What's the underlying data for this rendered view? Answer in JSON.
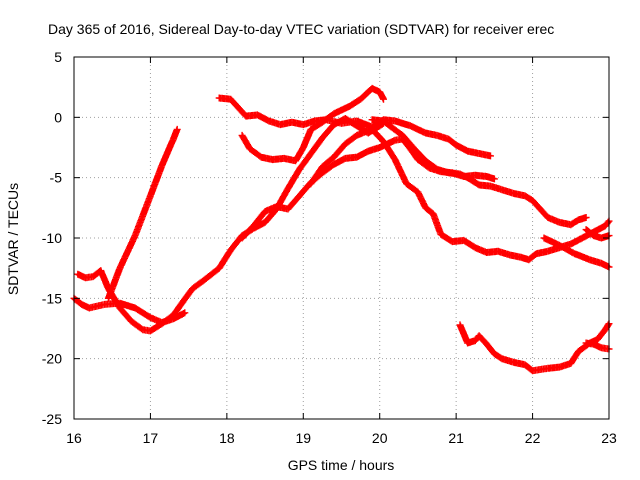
{
  "chart_data": {
    "type": "scatter",
    "title": "Day 365 of 2016, Sidereal Day-to-day VTEC variation (SDTVAR) for receiver erec",
    "xlabel": "GPS time / hours",
    "ylabel": "SDTVAR / TECUs",
    "xlim": [
      16,
      23
    ],
    "ylim": [
      -25,
      5
    ],
    "xticks": [
      "16",
      "17",
      "18",
      "19",
      "20",
      "21",
      "22",
      "23"
    ],
    "yticks": [
      "-25",
      "-20",
      "-15",
      "-10",
      "-5",
      "0",
      "5"
    ],
    "grid": true,
    "marker": "plus",
    "color": "#ff0000",
    "series": [
      {
        "name": "s1",
        "points": [
          [
            16.0,
            -15.0
          ],
          [
            16.1,
            -15.5
          ],
          [
            16.2,
            -15.8
          ],
          [
            16.4,
            -15.5
          ],
          [
            16.6,
            -15.4
          ],
          [
            16.8,
            -15.8
          ],
          [
            17.0,
            -16.6
          ],
          [
            17.15,
            -17.0
          ],
          [
            17.3,
            -16.7
          ],
          [
            17.45,
            -16.2
          ]
        ]
      },
      {
        "name": "s2",
        "points": [
          [
            16.05,
            -13.0
          ],
          [
            16.15,
            -13.3
          ],
          [
            16.25,
            -13.2
          ],
          [
            16.35,
            -12.7
          ],
          [
            16.45,
            -14.2
          ],
          [
            16.6,
            -15.8
          ],
          [
            16.75,
            -16.9
          ],
          [
            16.9,
            -17.6
          ],
          [
            17.0,
            -17.7
          ],
          [
            17.15,
            -17.1
          ],
          [
            17.3,
            -16.4
          ],
          [
            17.4,
            -15.5
          ],
          [
            17.55,
            -14.2
          ],
          [
            17.7,
            -13.5
          ],
          [
            17.9,
            -12.5
          ],
          [
            18.05,
            -11.0
          ],
          [
            18.2,
            -9.8
          ],
          [
            18.35,
            -9.2
          ],
          [
            18.5,
            -8.7
          ],
          [
            18.65,
            -7.6
          ],
          [
            18.8,
            -5.9
          ],
          [
            18.95,
            -4.3
          ],
          [
            19.1,
            -3.0
          ],
          [
            19.25,
            -1.7
          ],
          [
            19.4,
            -0.6
          ],
          [
            19.55,
            -0.1
          ],
          [
            19.7,
            -0.7
          ],
          [
            19.85,
            -1.3
          ],
          [
            19.95,
            -0.9
          ],
          [
            20.05,
            -0.5
          ]
        ]
      },
      {
        "name": "s3",
        "points": [
          [
            16.45,
            -15.0
          ],
          [
            16.6,
            -12.5
          ],
          [
            16.8,
            -9.8
          ],
          [
            17.0,
            -6.5
          ],
          [
            17.15,
            -4.0
          ],
          [
            17.3,
            -1.8
          ],
          [
            17.35,
            -1.0
          ]
        ]
      },
      {
        "name": "s4",
        "points": [
          [
            17.9,
            1.6
          ],
          [
            18.05,
            1.5
          ],
          [
            18.15,
            0.8
          ],
          [
            18.25,
            0.1
          ],
          [
            18.4,
            0.2
          ],
          [
            18.55,
            -0.3
          ],
          [
            18.7,
            -0.6
          ],
          [
            18.85,
            -0.4
          ],
          [
            19.0,
            -0.6
          ],
          [
            19.15,
            -0.3
          ],
          [
            19.3,
            -0.2
          ],
          [
            19.5,
            -0.5
          ],
          [
            19.7,
            -0.3
          ],
          [
            19.9,
            -0.8
          ],
          [
            20.05,
            -0.2
          ],
          [
            20.2,
            -0.3
          ],
          [
            20.4,
            -0.7
          ],
          [
            20.6,
            -1.3
          ],
          [
            20.75,
            -1.5
          ],
          [
            20.9,
            -1.8
          ],
          [
            21.0,
            -2.3
          ],
          [
            21.15,
            -2.8
          ],
          [
            21.3,
            -3.0
          ],
          [
            21.45,
            -3.2
          ]
        ]
      },
      {
        "name": "s5",
        "points": [
          [
            18.2,
            -10.0
          ],
          [
            18.35,
            -9.0
          ],
          [
            18.5,
            -7.8
          ],
          [
            18.65,
            -7.4
          ],
          [
            18.8,
            -7.6
          ],
          [
            18.95,
            -6.5
          ],
          [
            19.1,
            -5.4
          ],
          [
            19.25,
            -4.6
          ],
          [
            19.4,
            -3.9
          ],
          [
            19.55,
            -3.4
          ],
          [
            19.7,
            -3.3
          ],
          [
            19.85,
            -2.8
          ],
          [
            20.0,
            -2.5
          ],
          [
            20.1,
            -2.2
          ],
          [
            20.2,
            -1.9
          ],
          [
            20.3,
            -1.8
          ],
          [
            20.4,
            -2.6
          ],
          [
            20.5,
            -3.5
          ],
          [
            20.65,
            -4.2
          ],
          [
            20.8,
            -4.5
          ],
          [
            20.95,
            -4.6
          ],
          [
            21.1,
            -4.9
          ],
          [
            21.25,
            -4.8
          ],
          [
            21.4,
            -4.9
          ],
          [
            21.5,
            -5.1
          ]
        ]
      },
      {
        "name": "s6",
        "points": [
          [
            18.2,
            -1.5
          ],
          [
            18.3,
            -2.6
          ],
          [
            18.45,
            -3.3
          ],
          [
            18.6,
            -3.5
          ],
          [
            18.75,
            -3.4
          ],
          [
            18.9,
            -3.6
          ],
          [
            19.0,
            -2.5
          ],
          [
            19.1,
            -1.0
          ],
          [
            19.25,
            -0.4
          ],
          [
            19.4,
            0.3
          ],
          [
            19.6,
            0.9
          ],
          [
            19.75,
            1.5
          ],
          [
            19.9,
            2.4
          ],
          [
            20.0,
            2.1
          ],
          [
            20.05,
            1.5
          ]
        ]
      },
      {
        "name": "s7",
        "points": [
          [
            19.1,
            -5.5
          ],
          [
            19.25,
            -4.1
          ],
          [
            19.4,
            -3.3
          ],
          [
            19.55,
            -2.2
          ],
          [
            19.7,
            -1.5
          ],
          [
            19.85,
            -1.1
          ],
          [
            19.9,
            -1.0
          ],
          [
            20.05,
            -2.0
          ],
          [
            20.2,
            -3.5
          ],
          [
            20.35,
            -5.5
          ],
          [
            20.5,
            -6.2
          ],
          [
            20.6,
            -7.5
          ],
          [
            20.7,
            -8.0
          ],
          [
            20.8,
            -9.7
          ],
          [
            20.95,
            -10.3
          ],
          [
            21.1,
            -10.2
          ],
          [
            21.25,
            -10.8
          ],
          [
            21.4,
            -11.2
          ],
          [
            21.55,
            -11.1
          ],
          [
            21.7,
            -11.4
          ],
          [
            21.85,
            -11.6
          ],
          [
            21.95,
            -11.8
          ],
          [
            22.05,
            -11.3
          ],
          [
            22.2,
            -11.1
          ],
          [
            22.35,
            -10.8
          ],
          [
            22.5,
            -10.5
          ],
          [
            22.65,
            -10.0
          ],
          [
            22.8,
            -9.5
          ],
          [
            22.95,
            -9.0
          ],
          [
            23.0,
            -8.6
          ]
        ]
      },
      {
        "name": "s8",
        "points": [
          [
            19.9,
            -0.2
          ],
          [
            20.05,
            -0.3
          ],
          [
            20.15,
            -0.8
          ],
          [
            20.3,
            -1.5
          ],
          [
            20.45,
            -2.6
          ],
          [
            20.6,
            -3.6
          ],
          [
            20.75,
            -4.3
          ],
          [
            20.9,
            -4.6
          ],
          [
            21.05,
            -4.7
          ],
          [
            21.15,
            -5.0
          ],
          [
            21.3,
            -5.6
          ],
          [
            21.45,
            -5.7
          ],
          [
            21.6,
            -6.0
          ],
          [
            21.75,
            -6.3
          ],
          [
            21.9,
            -6.5
          ],
          [
            22.0,
            -6.9
          ],
          [
            22.1,
            -7.6
          ],
          [
            22.2,
            -8.3
          ],
          [
            22.35,
            -8.7
          ],
          [
            22.5,
            -8.9
          ],
          [
            22.6,
            -8.5
          ],
          [
            22.7,
            -8.3
          ]
        ]
      },
      {
        "name": "s9",
        "points": [
          [
            22.15,
            -10.0
          ],
          [
            22.35,
            -10.6
          ],
          [
            22.55,
            -11.3
          ],
          [
            22.75,
            -11.8
          ],
          [
            22.9,
            -12.1
          ],
          [
            23.0,
            -12.4
          ]
        ]
      },
      {
        "name": "s10",
        "points": [
          [
            22.7,
            -9.3
          ],
          [
            22.8,
            -9.8
          ],
          [
            22.9,
            -10.0
          ],
          [
            23.0,
            -9.8
          ]
        ]
      },
      {
        "name": "s11",
        "points": [
          [
            21.05,
            -17.2
          ],
          [
            21.15,
            -18.7
          ],
          [
            21.25,
            -18.5
          ],
          [
            21.3,
            -18.1
          ],
          [
            21.4,
            -18.8
          ],
          [
            21.5,
            -19.6
          ],
          [
            21.6,
            -20.0
          ],
          [
            21.75,
            -20.3
          ],
          [
            21.9,
            -20.5
          ],
          [
            22.0,
            -21.0
          ],
          [
            22.1,
            -20.9
          ],
          [
            22.2,
            -20.8
          ],
          [
            22.35,
            -20.7
          ],
          [
            22.5,
            -20.4
          ],
          [
            22.6,
            -19.4
          ],
          [
            22.75,
            -18.7
          ],
          [
            22.85,
            -18.4
          ],
          [
            22.95,
            -17.6
          ],
          [
            23.0,
            -17.1
          ]
        ]
      },
      {
        "name": "s12",
        "points": [
          [
            22.7,
            -18.7
          ],
          [
            22.8,
            -18.8
          ],
          [
            22.9,
            -19.1
          ],
          [
            23.0,
            -19.2
          ]
        ]
      }
    ]
  }
}
